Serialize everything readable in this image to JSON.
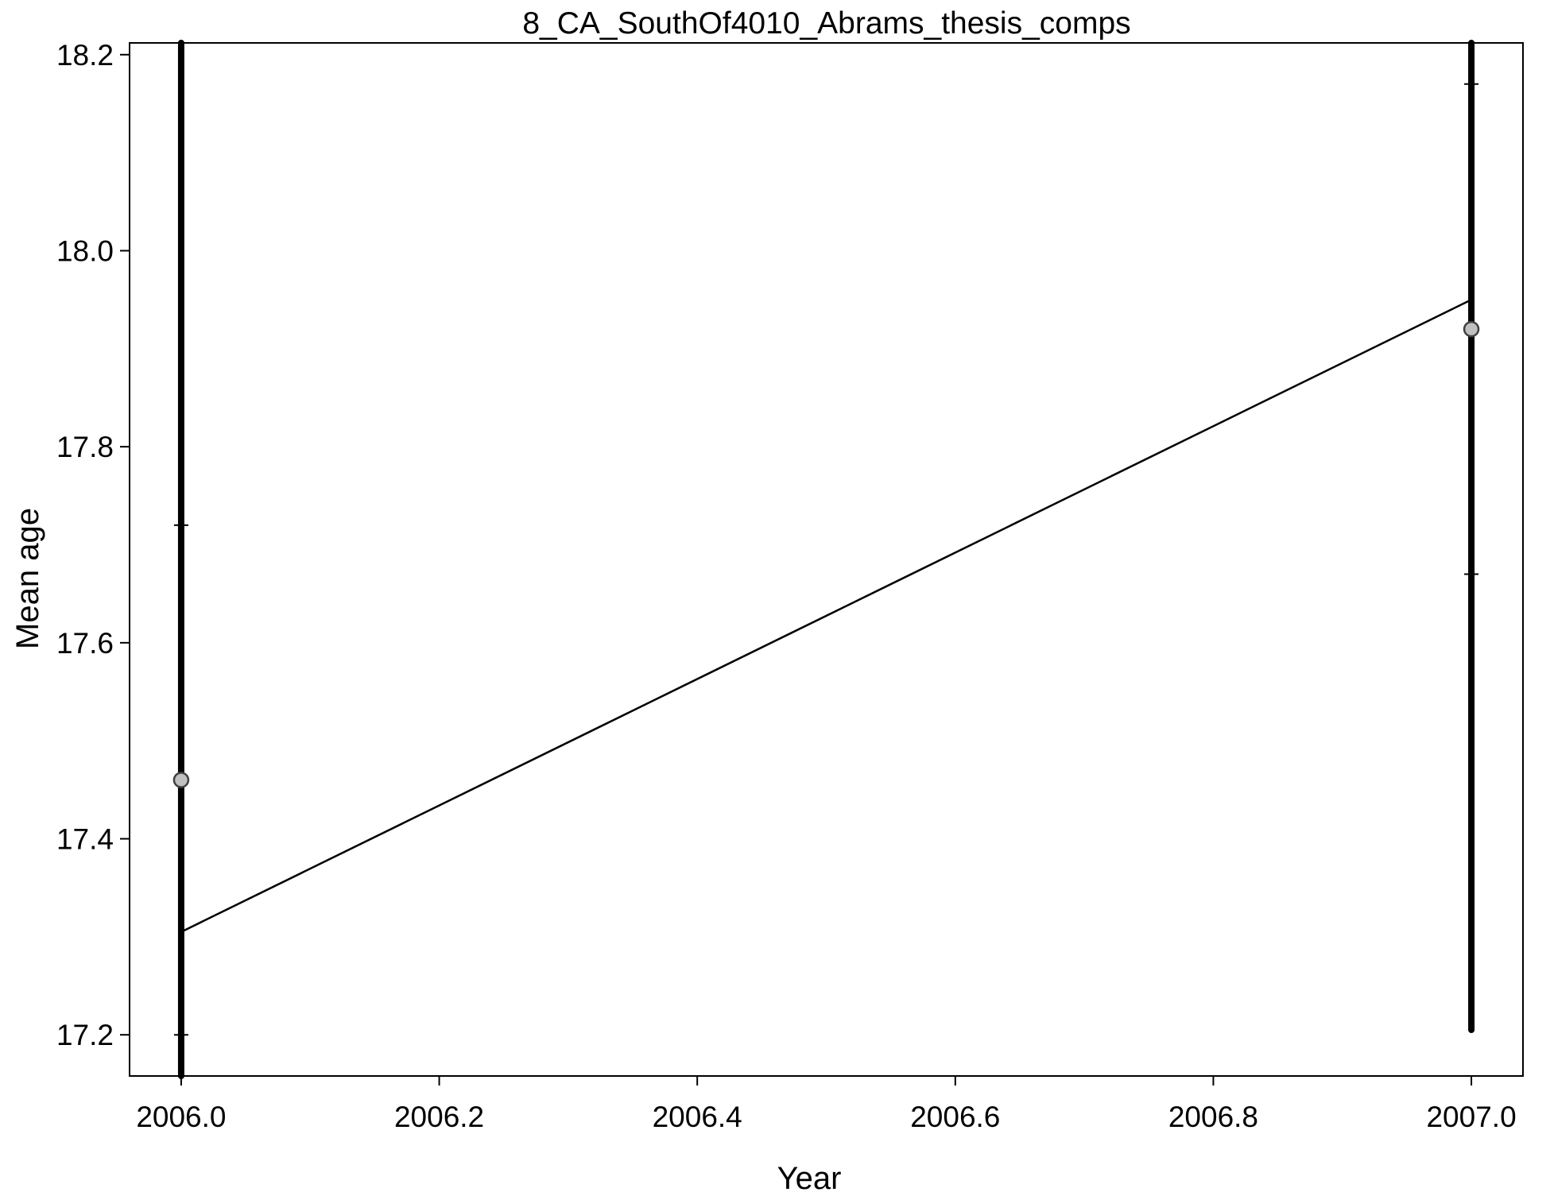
{
  "chart_data": {
    "type": "line",
    "title": "8_CA_SouthOf4010_Abrams_thesis_comps",
    "xlabel": "Year",
    "ylabel": "Mean age",
    "xlim": [
      2005.96,
      2007.04
    ],
    "ylim": [
      17.158,
      18.212
    ],
    "x_ticks": [
      2006.0,
      2006.2,
      2006.4,
      2006.6,
      2006.8,
      2007.0
    ],
    "x_tick_labels": [
      "2006.0",
      "2006.2",
      "2006.4",
      "2006.6",
      "2006.8",
      "2007.0"
    ],
    "y_ticks": [
      17.2,
      17.4,
      17.6,
      17.8,
      18.0,
      18.2
    ],
    "y_tick_labels": [
      "17.2",
      "17.4",
      "17.6",
      "17.8",
      "18.0",
      "18.2"
    ],
    "grid": false,
    "observed": {
      "x": [
        2006.0,
        2007.0
      ],
      "y": [
        17.46,
        17.92
      ],
      "thick_interval_low": [
        17.158,
        17.205
      ],
      "thick_interval_high": [
        18.212,
        18.212
      ],
      "thin_interval_low": [
        17.2,
        17.67
      ],
      "thin_interval_high": [
        17.72,
        18.17
      ]
    },
    "expected": {
      "x": [
        2006.0,
        2007.0
      ],
      "y": [
        17.305,
        17.95
      ]
    },
    "colors": {
      "line": "#000000",
      "point_fill": "#c0c0c0",
      "point_stroke": "#404040"
    }
  }
}
